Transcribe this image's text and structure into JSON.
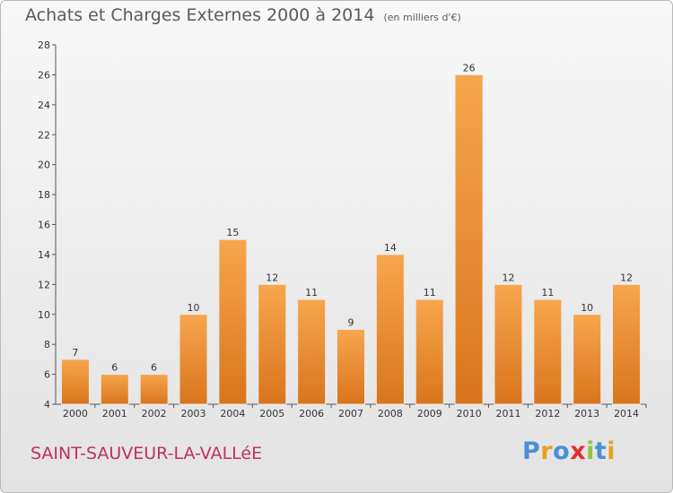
{
  "title": "Achats et Charges Externes 2000 à 2014",
  "subtitle": "(en milliers d'€)",
  "commune": "SAINT-SAUVEUR-LA-VALLéE",
  "logo": {
    "text": "Proxiti",
    "colors": [
      "#4a8fd8",
      "#e8a020",
      "#4a8fd8",
      "#e03030",
      "#8cc63f",
      "#4a8fd8",
      "#e8a020"
    ]
  },
  "colors": {
    "bar_top": "#f7a64d",
    "bar_bottom": "#d9751c",
    "bar_stroke": "#e9e9e9"
  },
  "chart_data": {
    "type": "bar",
    "title": "Achats et Charges Externes 2000 à 2014",
    "subtitle": "(en milliers d'€)",
    "categories": [
      "2000",
      "2001",
      "2002",
      "2003",
      "2004",
      "2005",
      "2006",
      "2007",
      "2008",
      "2009",
      "2010",
      "2011",
      "2012",
      "2013",
      "2014"
    ],
    "values": [
      7,
      6,
      6,
      10,
      15,
      12,
      11,
      9,
      14,
      11,
      26,
      12,
      11,
      10,
      12
    ],
    "ylim": [
      4,
      28
    ],
    "yticks": [
      4,
      6,
      8,
      10,
      12,
      14,
      16,
      18,
      20,
      22,
      24,
      26,
      28
    ],
    "grid": false,
    "legend": "none"
  }
}
